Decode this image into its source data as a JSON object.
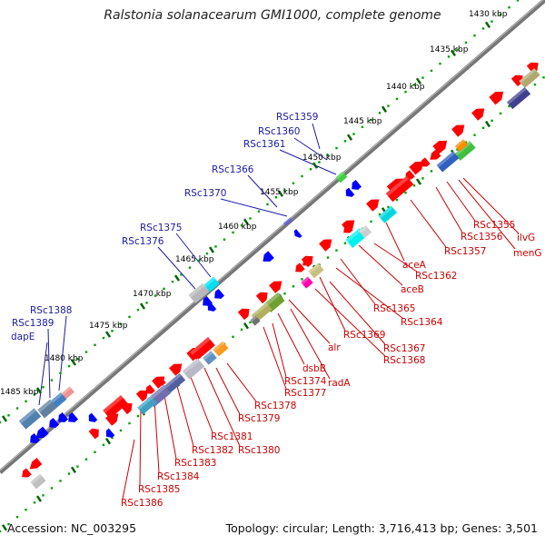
{
  "header": {
    "title": "Ralstonia solanacearum GMI1000, complete genome"
  },
  "footer": {
    "accession": "Accession: NC_003295",
    "summary": "Topology: circular; Length: 3,716,413 bp; Genes: 3,501"
  },
  "colors": {
    "forward": "#ff0000",
    "reverse": "#0000ff",
    "backbone": "#707070",
    "ruler": "#00a000",
    "tick": "#006400",
    "ruler_label": "#000000",
    "label_blue": "#1a1aa6",
    "label_red": "#cc0000"
  },
  "ruler_labels": [
    "1430 kbp",
    "1435 kbp",
    "1440 kbp",
    "1445 kbp",
    "1450 kbp",
    "1455 kbp",
    "1460 kbp",
    "1465 kbp",
    "1470 kbp",
    "1475 kbp",
    "1480 kbp",
    "1485 kbp"
  ],
  "blue_labels": [
    "RSc1359",
    "RSc1360",
    "RSc1361",
    "RSc1366",
    "RSc1370",
    "RSc1375",
    "RSc1376",
    "RSc1388",
    "RSc1389",
    "dapE"
  ],
  "red_labels": [
    "RSc1355",
    "RSc1356",
    "ilvG",
    "RSc1357",
    "menG",
    "aceA",
    "RSc1362",
    "aceB",
    "RSc1365",
    "RSc1364",
    "RSc1369",
    "RSc1367",
    "RSc1368",
    "alr",
    "dsbB",
    "radA",
    "RSc1374",
    "RSc1377",
    "RSc1378",
    "RSc1379",
    "RSc1381",
    "RSc1380",
    "RSc1382",
    "RSc1383",
    "RSc1384",
    "RSc1385",
    "RSc1386"
  ]
}
